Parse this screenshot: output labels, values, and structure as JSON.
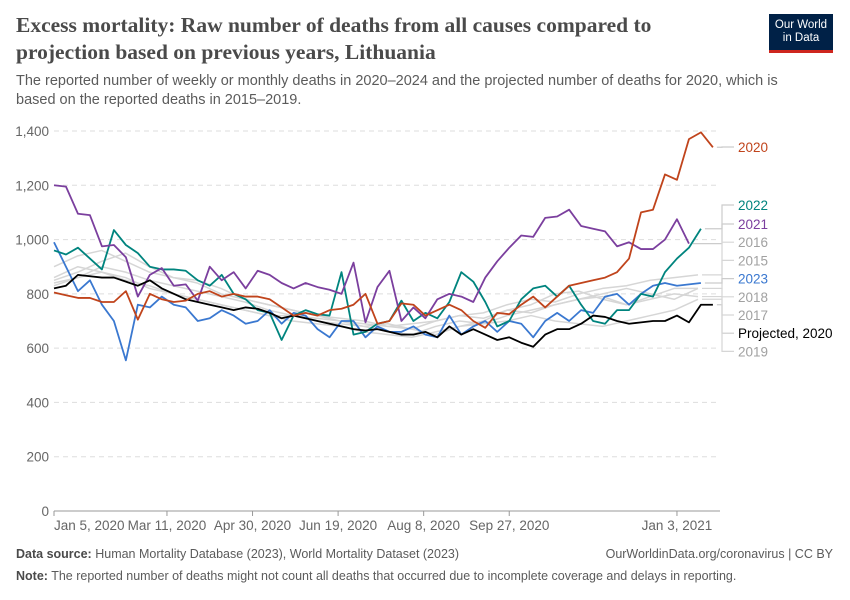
{
  "header": {
    "title": "Excess mortality: Raw number of deaths from all causes compared to projection based on previous years, Lithuania",
    "subtitle": "The reported number of weekly or monthly deaths in 2020–2024 and the projected number of deaths for 2020, which is based on the reported deaths in 2015–2019.",
    "logo_line1": "Our World",
    "logo_line2": "in Data"
  },
  "footer": {
    "source_label": "Data source:",
    "source_text": "Human Mortality Database (2023), World Mortality Dataset (2023)",
    "credit": "OurWorldinData.org/coronavirus | CC BY",
    "note_label": "Note:",
    "note_text": "The reported number of deaths might not count all deaths that occurred due to incomplete coverage and delays in reporting."
  },
  "colors": {
    "2020": "#c0441c",
    "2021": "#7b3f9e",
    "2022": "#00847e",
    "2023": "#3a78d0",
    "projected": "#000000",
    "past": "#d6d6d6",
    "past_label": "#a1a1a1",
    "grid": "#dddddd",
    "axis_text": "#666666"
  },
  "chart_data": {
    "type": "line",
    "title": "Excess mortality: Raw number of deaths from all causes compared to projection based on previous years, Lithuania",
    "xlabel": "",
    "ylabel": "",
    "ylim": [
      0,
      1400
    ],
    "yticks": [
      0,
      200,
      400,
      600,
      800,
      1000,
      1200,
      1400
    ],
    "ytick_labels": [
      "0",
      "200",
      "400",
      "600",
      "800",
      "1,000",
      "1,200",
      "1,400"
    ],
    "xticks": [
      {
        "label": "Jan 5, 2020",
        "day": 0
      },
      {
        "label": "Mar 11, 2020",
        "day": 66
      },
      {
        "label": "Apr 30, 2020",
        "day": 116
      },
      {
        "label": "Jun 19, 2020",
        "day": 166
      },
      {
        "label": "Aug 8, 2020",
        "day": 216
      },
      {
        "label": "Sep 27, 2020",
        "day": 266
      },
      {
        "label": "Jan 3, 2021",
        "day": 364
      }
    ],
    "x_unit": "week index from Jan 5, 2020",
    "grid": true,
    "legend_placement": "right (line-end labels)",
    "series": [
      {
        "name": "2019",
        "key": "past",
        "step": 2,
        "values": [
          830,
          860,
          880,
          850,
          830,
          800,
          780,
          760,
          740,
          720,
          700,
          690,
          680,
          660,
          650,
          640,
          660,
          680,
          690,
          700,
          720,
          700,
          690,
          680,
          700,
          720,
          740,
          780
        ]
      },
      {
        "name": "2017",
        "key": "past",
        "step": 2,
        "values": [
          840,
          860,
          900,
          880,
          850,
          830,
          810,
          790,
          770,
          740,
          720,
          710,
          700,
          680,
          690,
          670,
          650,
          680,
          700,
          740,
          730,
          760,
          780,
          790,
          760,
          780,
          800,
          790
        ]
      },
      {
        "name": "2018",
        "key": "past",
        "step": 2,
        "values": [
          850,
          880,
          920,
          950,
          900,
          860,
          840,
          800,
          780,
          760,
          740,
          720,
          710,
          700,
          680,
          690,
          700,
          720,
          710,
          740,
          760,
          800,
          810,
          780,
          760,
          790,
          820,
          820
        ]
      },
      {
        "name": "2015",
        "key": "past",
        "step": 2,
        "values": [
          860,
          900,
          880,
          860,
          820,
          800,
          780,
          760,
          740,
          720,
          720,
          700,
          690,
          680,
          660,
          650,
          680,
          700,
          690,
          720,
          740,
          760,
          780,
          800,
          820,
          800,
          780,
          820
        ]
      },
      {
        "name": "2016",
        "key": "past",
        "step": 2,
        "values": [
          900,
          940,
          960,
          920,
          880,
          860,
          850,
          820,
          780,
          760,
          740,
          720,
          700,
          690,
          680,
          670,
          700,
          720,
          730,
          760,
          780,
          770,
          800,
          820,
          830,
          850,
          860,
          870
        ]
      },
      {
        "name": "2023",
        "key": "2023",
        "step": 1,
        "values": [
          990,
          900,
          810,
          850,
          760,
          700,
          555,
          760,
          750,
          790,
          760,
          750,
          700,
          710,
          740,
          720,
          690,
          700,
          740,
          690,
          730,
          720,
          670,
          640,
          700,
          700,
          640,
          680,
          660,
          660,
          680,
          650,
          640,
          720,
          650,
          680,
          700,
          660,
          700,
          690,
          640,
          700,
          730,
          700,
          740,
          730,
          790,
          800,
          760,
          800,
          830,
          840,
          830,
          835,
          840
        ]
      },
      {
        "name": "2022",
        "key": "2022",
        "step": 1,
        "values": [
          960,
          945,
          970,
          930,
          890,
          1035,
          980,
          950,
          900,
          890,
          890,
          885,
          850,
          830,
          870,
          800,
          780,
          740,
          730,
          630,
          720,
          740,
          725,
          720,
          880,
          650,
          660,
          690,
          700,
          775,
          700,
          730,
          710,
          770,
          880,
          845,
          770,
          680,
          700,
          780,
          820,
          830,
          790,
          830,
          760,
          700,
          690,
          740,
          740,
          800,
          790,
          880,
          930,
          970,
          1040
        ]
      },
      {
        "name": "2021",
        "key": "2021",
        "step": 1,
        "values": [
          1200,
          1195,
          1095,
          1090,
          975,
          980,
          935,
          790,
          870,
          895,
          830,
          835,
          775,
          900,
          850,
          880,
          820,
          885,
          870,
          840,
          820,
          840,
          825,
          815,
          800,
          915,
          695,
          825,
          885,
          700,
          750,
          710,
          780,
          800,
          790,
          770,
          860,
          920,
          970,
          1015,
          1010,
          1080,
          1085,
          1110,
          1050,
          1040,
          1030,
          975,
          990,
          965,
          965,
          1000,
          1075,
          985
        ]
      },
      {
        "name": "Projected, 2020",
        "key": "projected",
        "step": 1,
        "values": [
          820,
          830,
          870,
          865,
          860,
          860,
          845,
          830,
          850,
          820,
          800,
          780,
          770,
          760,
          750,
          740,
          750,
          745,
          730,
          710,
          720,
          710,
          700,
          690,
          680,
          670,
          665,
          670,
          660,
          650,
          650,
          660,
          640,
          680,
          650,
          670,
          650,
          630,
          640,
          620,
          605,
          650,
          670,
          670,
          690,
          720,
          715,
          700,
          690,
          695,
          700,
          700,
          720,
          695,
          760,
          760
        ]
      },
      {
        "name": "2020",
        "key": "2020",
        "step": 1,
        "values": [
          805,
          795,
          785,
          785,
          770,
          770,
          810,
          705,
          800,
          780,
          770,
          775,
          800,
          810,
          790,
          800,
          790,
          790,
          780,
          750,
          720,
          730,
          720,
          740,
          745,
          760,
          800,
          690,
          700,
          765,
          760,
          720,
          740,
          760,
          740,
          700,
          675,
          730,
          725,
          760,
          790,
          750,
          790,
          830,
          840,
          850,
          860,
          880,
          930,
          1100,
          1110,
          1240,
          1220,
          1370,
          1395,
          1340
        ]
      }
    ],
    "legend_order": [
      "2020",
      "2022",
      "2021",
      "2016",
      "2015",
      "2023",
      "2018",
      "2017",
      "Projected, 2020",
      "2019"
    ]
  }
}
